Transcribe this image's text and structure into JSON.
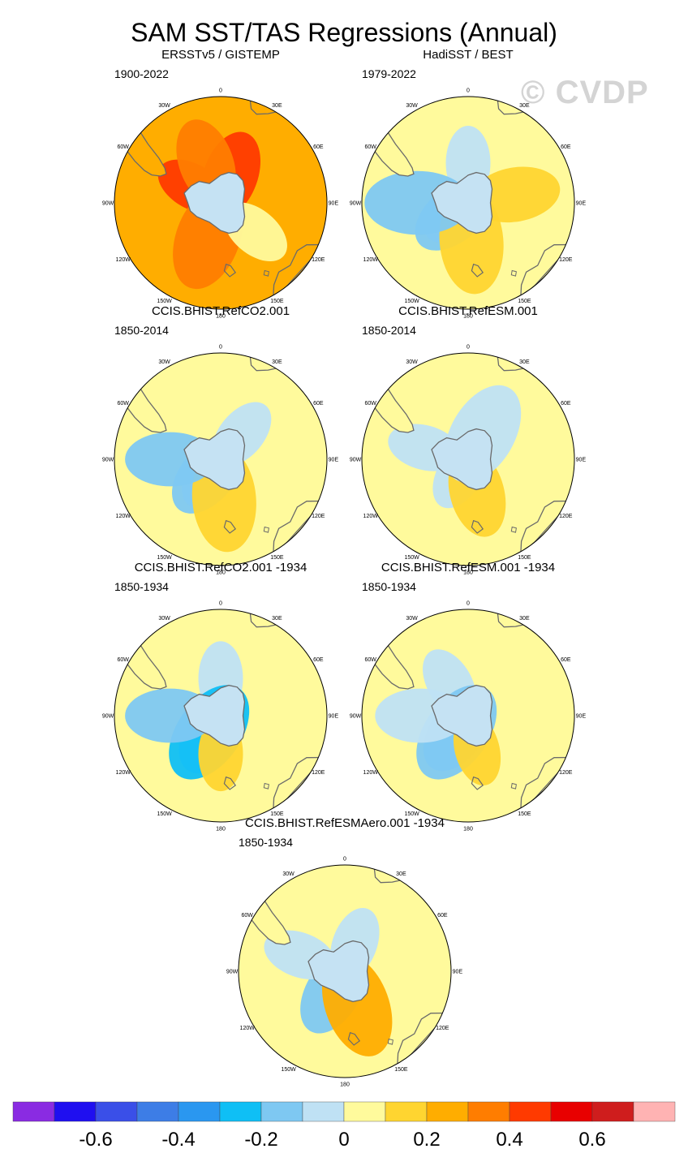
{
  "title": "SAM SST/TAS Regressions (Annual)",
  "watermark": "© CVDP",
  "colors": {
    "land_outline": "#6a6a6a",
    "antarctica_fill": "#c5e2f3",
    "frame": "#000000"
  },
  "chart_data": {
    "type": "polar-map-panels",
    "projection": "South Polar Stereographic",
    "longitude_labels": [
      "0",
      "30E",
      "60E",
      "90E",
      "120E",
      "150E",
      "180",
      "150W",
      "120W",
      "90W",
      "60W",
      "30W"
    ],
    "panels": [
      {
        "title": "ERSSTv5 / GISTEMP",
        "period": "1900-2022",
        "background_value": 0.25,
        "anomalies": [
          {
            "value": 0.45,
            "lon": 300,
            "r": 0.62
          },
          {
            "value": 0.45,
            "lon": 20,
            "r": 0.55
          },
          {
            "value": 0.35,
            "lon": 200,
            "r": 0.7
          },
          {
            "value": 0.05,
            "lon": 130,
            "r": 0.85
          },
          {
            "value": 0.35,
            "lon": 340,
            "r": 0.8
          }
        ]
      },
      {
        "title": "HadiSST / BEST",
        "period": "1979-2022",
        "background_value": 0.05,
        "anomalies": [
          {
            "value": -0.05,
            "lon": 230,
            "r": 0.3
          },
          {
            "value": -0.15,
            "lon": 230,
            "r": 0.35
          },
          {
            "value": 0.15,
            "lon": 175,
            "r": 0.72
          },
          {
            "value": -0.05,
            "lon": 0,
            "r": 0.75
          },
          {
            "value": 0.15,
            "lon": 80,
            "r": 0.9
          },
          {
            "value": -0.15,
            "lon": 270,
            "r": 0.95
          }
        ]
      },
      {
        "title": "CCIS.BHIST.RefCO2.001",
        "period": "1850-2014",
        "background_value": 0.05,
        "anomalies": [
          {
            "value": -0.05,
            "lon": 215,
            "r": 0.35
          },
          {
            "value": -0.15,
            "lon": 220,
            "r": 0.38
          },
          {
            "value": 0.15,
            "lon": 175,
            "r": 0.75
          },
          {
            "value": -0.05,
            "lon": 40,
            "r": 0.62
          },
          {
            "value": -0.15,
            "lon": 270,
            "r": 0.95
          }
        ]
      },
      {
        "title": "CCIS.BHIST.RefESM.001",
        "period": "1850-2014",
        "background_value": 0.05,
        "anomalies": [
          {
            "value": -0.05,
            "lon": 210,
            "r": 0.32
          },
          {
            "value": 0.15,
            "lon": 165,
            "r": 0.65
          },
          {
            "value": -0.05,
            "lon": 30,
            "r": 0.55
          },
          {
            "value": -0.05,
            "lon": 285,
            "r": 0.85
          }
        ]
      },
      {
        "title": "CCIS.BHIST.RefCO2.001 -1934",
        "period": "1850-1934",
        "background_value": 0.05,
        "anomalies": [
          {
            "value": -0.05,
            "lon": 0,
            "r": 0.7
          },
          {
            "value": -0.15,
            "lon": 210,
            "r": 0.35
          },
          {
            "value": -0.25,
            "lon": 215,
            "r": 0.38
          },
          {
            "value": 0.15,
            "lon": 180,
            "r": 0.72
          },
          {
            "value": -0.15,
            "lon": 270,
            "r": 0.95
          }
        ]
      },
      {
        "title": "CCIS.BHIST.RefESM.001 -1934",
        "period": "1850-1934",
        "background_value": 0.05,
        "anomalies": [
          {
            "value": -0.05,
            "lon": 330,
            "r": 0.7
          },
          {
            "value": -0.15,
            "lon": 215,
            "r": 0.35
          },
          {
            "value": -0.2,
            "lon": 215,
            "r": 0.38
          },
          {
            "value": 0.15,
            "lon": 165,
            "r": 0.65
          },
          {
            "value": -0.05,
            "lon": 270,
            "r": 0.9
          }
        ]
      },
      {
        "title": "CCIS.BHIST.RefESMAero.001 -1934",
        "period": "1850-1934",
        "background_value": 0.05,
        "anomalies": [
          {
            "value": -0.05,
            "lon": 20,
            "r": 0.55
          },
          {
            "value": -0.15,
            "lon": 210,
            "r": 0.45
          },
          {
            "value": 0.2,
            "lon": 160,
            "r": 0.68
          },
          {
            "value": -0.05,
            "lon": 290,
            "r": 0.9
          }
        ]
      }
    ],
    "colorbar": {
      "levels": [
        -0.7,
        -0.6,
        -0.5,
        -0.4,
        -0.3,
        -0.2,
        -0.1,
        0,
        0.1,
        0.2,
        0.3,
        0.4,
        0.5,
        0.6,
        0.7
      ],
      "colors": [
        "#8a2be2",
        "#1f0ff0",
        "#3a4fe8",
        "#3d7de6",
        "#2a97f0",
        "#0fbff5",
        "#7ec8f2",
        "#bfe1f4",
        "#fffa9c",
        "#ffd530",
        "#ffad00",
        "#ff7d00",
        "#ff3a00",
        "#e80000",
        "#cf1d1d",
        "#ffb3b3"
      ],
      "labels": [
        "-0.6",
        "-0.4",
        "-0.2",
        "0",
        "0.2",
        "0.4",
        "0.6"
      ]
    }
  }
}
